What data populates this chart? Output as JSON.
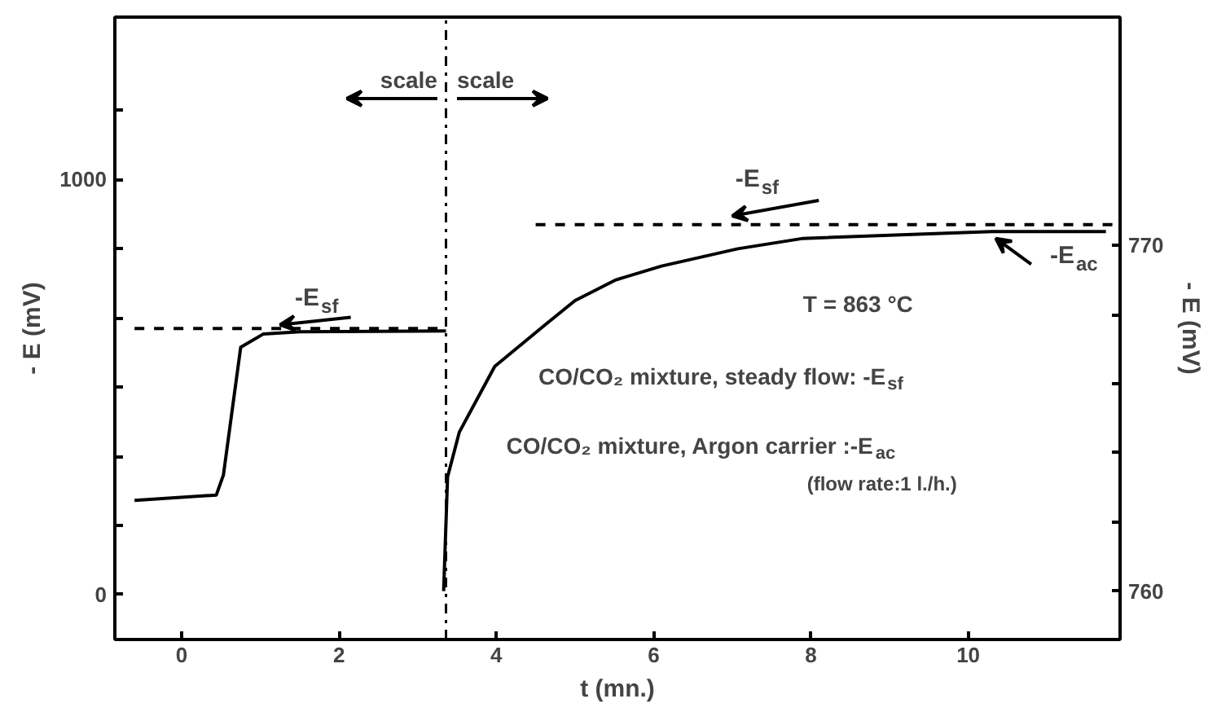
{
  "chart_data": {
    "type": "line",
    "xlabel": "t (mn.)",
    "ylabel": "- E (mV)",
    "y2label": "- E (mV)",
    "xlim": [
      -0.85,
      11.93
    ],
    "xticks": [
      0,
      2,
      4,
      6,
      8,
      10
    ],
    "ylim": [
      -108,
      1391
    ],
    "yticks": [
      0,
      {
        "value": 166.7,
        "label": null
      },
      {
        "value": 333.3,
        "label": null
      },
      {
        "value": 500,
        "label": null
      },
      {
        "value": 666.7,
        "label": null
      },
      {
        "value": 833.3,
        "label": null
      },
      1000,
      {
        "value": 1166.7,
        "label": null
      }
    ],
    "y2lim": [
      758.6,
      776.6
    ],
    "y2ticks": [
      760,
      {
        "value": 762,
        "label": null
      },
      {
        "value": 764,
        "label": null
      },
      {
        "value": 766,
        "label": null
      },
      {
        "value": 768,
        "label": null
      },
      770
    ],
    "grid": false,
    "marker": "none",
    "series": [
      {
        "color": "#000000",
        "line_style": "solid",
        "x": [
          -0.6,
          0.44,
          0.53,
          0.75,
          1.04,
          1.5,
          3.36
        ],
        "values": [
          227,
          240,
          288,
          596,
          628,
          633,
          635
        ]
      },
      {
        "name": "-E$_{sf}$",
        "color": "#000000",
        "line_style": "dashed",
        "x": [
          -0.6,
          3.36
        ],
        "values": [
          641,
          641
        ]
      },
      {
        "name": "-E$_{ac}$",
        "color": "#000000",
        "line_style": "solid",
        "axis": "y2",
        "x": [
          3.33,
          3.38,
          3.53,
          3.98,
          4.62,
          5.0,
          5.52,
          6.1,
          7.07,
          7.9,
          10.3,
          11.75
        ],
        "values": [
          760.0,
          763.3,
          764.6,
          766.5,
          767.7,
          768.4,
          769.0,
          769.4,
          769.9,
          770.2,
          770.4,
          770.4
        ]
      },
      {
        "name": "-E$_{sf}$",
        "color": "#000000",
        "line_style": "dashed",
        "axis": "y2",
        "x": [
          4.5,
          11.9
        ],
        "values": [
          770.6,
          770.6
        ]
      }
    ],
    "ref_lines": [
      {
        "axis": "x",
        "value": 3.36,
        "line_style": "dashdot",
        "color": "#000000"
      }
    ],
    "annotations": [
      "scale",
      "scale",
      "T = 863 °C",
      "CO/CO₂ mixture, steady flow: -E$_{sf}$",
      "CO/CO₂ mixture, Argon carrier :-E$_{ac}$",
      "(flow rate:1 l./h.)"
    ]
  }
}
